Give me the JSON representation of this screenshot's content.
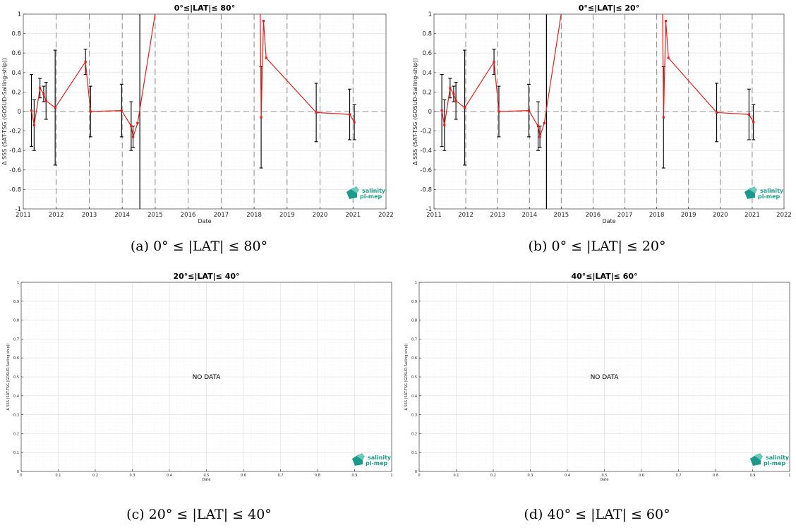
{
  "figure": {
    "captions": [
      "(a) 0° ≤ |LAT| ≤ 80°",
      "(b) 0° ≤ |LAT| ≤ 20°",
      "(c) 20° ≤ |LAT| ≤ 40°",
      "(d) 40° ≤ |LAT| ≤ 60°"
    ],
    "logo": {
      "line1": "salinity",
      "line2": "pi-mep"
    },
    "nodata_label": "NO DATA"
  },
  "chart_data": [
    {
      "type": "line",
      "title": "0°≤|LAT|≤ 80°",
      "xlabel": "Date",
      "ylabel": "Δ SSS (SAT-TSG (GOSUD-Sailing-ship))",
      "x_axis": "date",
      "xlim": [
        "2011-01-01",
        "2022-01-01"
      ],
      "ylim": [
        -1,
        1
      ],
      "x_ticks": [
        "2011",
        "2012",
        "2013",
        "2014",
        "2015",
        "2016",
        "2017",
        "2018",
        "2019",
        "2020",
        "2021",
        "2022"
      ],
      "y_ticks": [
        "-1",
        "-0.8",
        "-0.6",
        "-0.4",
        "-0.2",
        "0",
        "0.2",
        "0.4",
        "0.6",
        "0.8",
        "1"
      ],
      "grid": true,
      "series": [
        {
          "color": "#e0201c",
          "points": [
            {
              "x": "2011-04-01",
              "y": 0.01,
              "err": 0.37
            },
            {
              "x": "2011-05-01",
              "y": -0.14,
              "err": 0.26
            },
            {
              "x": "2011-07-05",
              "y": 0.24,
              "err": 0.1
            },
            {
              "x": "2011-08-15",
              "y": 0.18,
              "err": 0.08
            },
            {
              "x": "2011-09-10",
              "y": 0.11,
              "err": 0.19
            },
            {
              "x": "2011-12-20",
              "y": 0.04,
              "err": 0.59
            },
            {
              "x": "2012-11-20",
              "y": 0.51,
              "err": 0.13
            },
            {
              "x": "2013-01-15",
              "y": 0.0,
              "err": 0.26
            },
            {
              "x": "2013-12-25",
              "y": 0.01,
              "err": 0.27
            },
            {
              "x": "2014-04-10",
              "y": -0.15,
              "err": 0.25
            },
            {
              "x": "2014-05-01",
              "y": -0.26,
              "err": 0.11
            },
            {
              "x": "2014-06-20",
              "y": -0.12,
              "err": 0.0
            },
            {
              "x": "2014-12-31",
              "y": 1.0,
              "err": 0.0
            }
          ]
        },
        {
          "color": "#e0201c",
          "points": [
            {
              "x": "2018-03-10",
              "y": 1.0,
              "err": 0.0
            },
            {
              "x": "2018-03-20",
              "y": -0.06,
              "err": 0.52
            },
            {
              "x": "2018-04-15",
              "y": 0.93,
              "err": 0.0
            },
            {
              "x": "2018-05-15",
              "y": 0.55,
              "err": 0.0
            },
            {
              "x": "2019-11-20",
              "y": -0.01,
              "err": 0.3
            },
            {
              "x": "2020-11-25",
              "y": -0.03,
              "err": 0.26
            },
            {
              "x": "2021-01-15",
              "y": -0.11,
              "err": 0.18
            }
          ]
        }
      ],
      "vlines": [
        {
          "x": "2014-07-15",
          "style": "solid"
        }
      ],
      "vlines_dashed": [
        "2012-01-01",
        "2013-01-01",
        "2014-01-01",
        "2015-01-01",
        "2016-01-01",
        "2017-01-01",
        "2018-01-01",
        "2019-01-01",
        "2020-01-01",
        "2021-01-01"
      ]
    },
    {
      "type": "line",
      "title": "0°≤|LAT|≤ 20°",
      "xlabel": "Date",
      "ylabel": "Δ SSS (SAT-TSG (GOSUD-Sailing-ship))",
      "x_axis": "date",
      "xlim": [
        "2011-01-01",
        "2022-01-01"
      ],
      "ylim": [
        -1,
        1
      ],
      "x_ticks": [
        "2011",
        "2012",
        "2013",
        "2014",
        "2015",
        "2016",
        "2017",
        "2018",
        "2019",
        "2020",
        "2021",
        "2022"
      ],
      "y_ticks": [
        "-1",
        "-0.8",
        "-0.6",
        "-0.4",
        "-0.2",
        "0",
        "0.2",
        "0.4",
        "0.6",
        "0.8",
        "1"
      ],
      "grid": true,
      "series": [
        {
          "color": "#e0201c",
          "points": [
            {
              "x": "2011-04-01",
              "y": 0.01,
              "err": 0.37
            },
            {
              "x": "2011-05-01",
              "y": -0.14,
              "err": 0.26
            },
            {
              "x": "2011-07-05",
              "y": 0.24,
              "err": 0.1
            },
            {
              "x": "2011-08-15",
              "y": 0.18,
              "err": 0.08
            },
            {
              "x": "2011-09-10",
              "y": 0.11,
              "err": 0.19
            },
            {
              "x": "2011-12-20",
              "y": 0.04,
              "err": 0.59
            },
            {
              "x": "2012-11-20",
              "y": 0.51,
              "err": 0.13
            },
            {
              "x": "2013-01-15",
              "y": 0.0,
              "err": 0.26
            },
            {
              "x": "2013-12-25",
              "y": 0.01,
              "err": 0.27
            },
            {
              "x": "2014-04-10",
              "y": -0.15,
              "err": 0.25
            },
            {
              "x": "2014-05-01",
              "y": -0.26,
              "err": 0.11
            },
            {
              "x": "2014-06-20",
              "y": -0.12,
              "err": 0.0
            },
            {
              "x": "2014-12-31",
              "y": 1.0,
              "err": 0.0
            }
          ]
        },
        {
          "color": "#e0201c",
          "points": [
            {
              "x": "2018-03-10",
              "y": 1.0,
              "err": 0.0
            },
            {
              "x": "2018-03-20",
              "y": -0.06,
              "err": 0.52
            },
            {
              "x": "2018-04-15",
              "y": 0.93,
              "err": 0.0
            },
            {
              "x": "2018-05-15",
              "y": 0.55,
              "err": 0.0
            },
            {
              "x": "2019-11-20",
              "y": -0.01,
              "err": 0.3
            },
            {
              "x": "2020-11-25",
              "y": -0.03,
              "err": 0.26
            },
            {
              "x": "2021-01-15",
              "y": -0.11,
              "err": 0.18
            }
          ]
        }
      ],
      "vlines": [
        {
          "x": "2014-07-15",
          "style": "solid"
        }
      ],
      "vlines_dashed": [
        "2012-01-01",
        "2013-01-01",
        "2014-01-01",
        "2015-01-01",
        "2016-01-01",
        "2017-01-01",
        "2018-01-01",
        "2019-01-01",
        "2020-01-01",
        "2021-01-01"
      ]
    },
    {
      "type": "line",
      "title": "20°≤|LAT|≤ 40°",
      "xlabel": "Date",
      "ylabel": "Δ SSS (SAT-TSG (GOSUD-Sailing-ship))",
      "xlim": [
        0,
        1
      ],
      "ylim": [
        0,
        1
      ],
      "x_ticks": [
        "0",
        "0.1",
        "0.2",
        "0.3",
        "0.4",
        "0.5",
        "0.6",
        "0.7",
        "0.8",
        "0.9",
        "1"
      ],
      "y_ticks": [
        "0",
        "0.1",
        "0.2",
        "0.3",
        "0.4",
        "0.5",
        "0.6",
        "0.7",
        "0.8",
        "0.9",
        "1"
      ],
      "grid": true,
      "series": []
    },
    {
      "type": "line",
      "title": "40°≤|LAT|≤ 60°",
      "xlabel": "Date",
      "ylabel": "Δ SSS (SAT-TSG (GOSUD-Sailing-ship))",
      "xlim": [
        0,
        1
      ],
      "ylim": [
        0,
        1
      ],
      "x_ticks": [
        "0",
        "0.1",
        "0.2",
        "0.3",
        "0.4",
        "0.5",
        "0.6",
        "0.7",
        "0.8",
        "0.9",
        "1"
      ],
      "y_ticks": [
        "0",
        "0.1",
        "0.2",
        "0.3",
        "0.4",
        "0.5",
        "0.6",
        "0.7",
        "0.8",
        "0.9",
        "1"
      ],
      "grid": true,
      "series": []
    }
  ]
}
